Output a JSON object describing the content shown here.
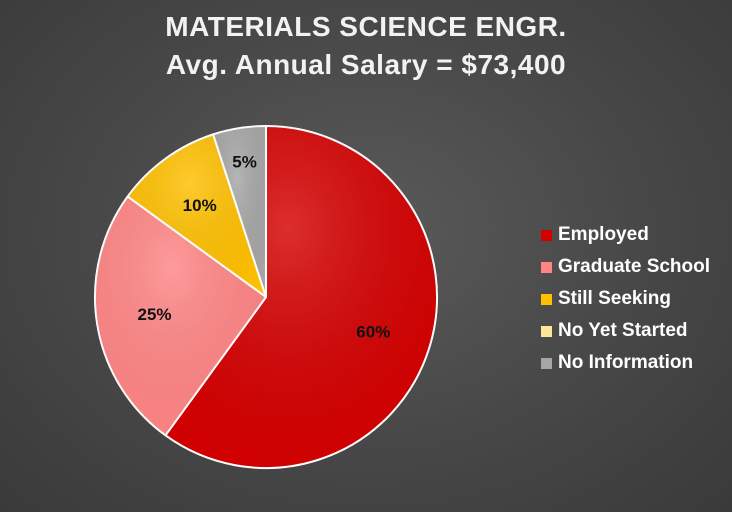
{
  "chart_data": {
    "type": "pie",
    "title": "MATERIALS SCIENCE ENGR.",
    "subtitle": "Avg. Annual Salary = $73,400",
    "legend_position": "right",
    "categories": [
      "Employed",
      "Graduate School",
      "Still Seeking",
      "No Yet Started",
      "No Information"
    ],
    "values": [
      60,
      25,
      10,
      0,
      5
    ],
    "data_labels": [
      "60%",
      "25%",
      "10%",
      "",
      "5%"
    ],
    "colors": [
      "#d40000",
      "#ff8585",
      "#ffc000",
      "#ffe699",
      "#a6a6a6"
    ]
  }
}
